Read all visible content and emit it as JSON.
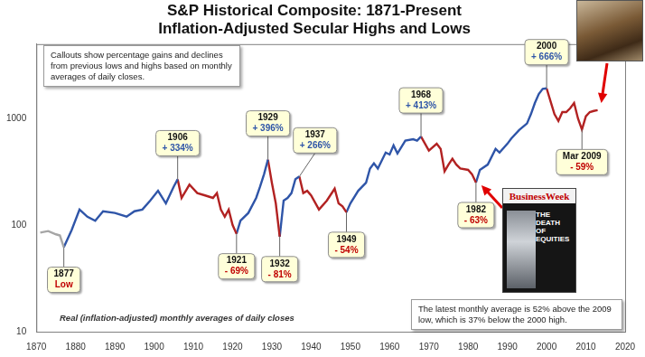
{
  "chart_data": {
    "type": "line",
    "title": [
      "S&P Historical Composite: 1871-Present",
      "Inflation-Adjusted Secular Highs and Lows"
    ],
    "xlim": [
      1870,
      2020
    ],
    "xticks": [
      1870,
      1880,
      1890,
      1900,
      1910,
      1920,
      1930,
      1940,
      1950,
      1960,
      1970,
      1980,
      1990,
      2000,
      2010,
      2020
    ],
    "ylim": [
      10,
      5000
    ],
    "yticks": [
      10,
      100,
      1000
    ],
    "log": "y",
    "grid": false,
    "series": [
      {
        "color": "#a6a6a6",
        "x": [
          1871,
          1873,
          1875,
          1876,
          1877
        ],
        "values": [
          85,
          88,
          82,
          80,
          62
        ]
      },
      {
        "color": "#2f55a8",
        "x": [
          1877,
          1879,
          1881,
          1883,
          1885,
          1887,
          1890,
          1893,
          1895,
          1897,
          1899,
          1901,
          1903,
          1905,
          1906
        ],
        "values": [
          62,
          90,
          140,
          120,
          110,
          135,
          130,
          120,
          135,
          140,
          170,
          210,
          160,
          230,
          269
        ]
      },
      {
        "color": "#b22222",
        "x": [
          1906,
          1907,
          1909,
          1911,
          1913,
          1915,
          1916,
          1917,
          1918,
          1919,
          1920,
          1921
        ],
        "values": [
          269,
          180,
          240,
          200,
          190,
          180,
          200,
          140,
          120,
          140,
          100,
          83
        ]
      },
      {
        "color": "#2f55a8",
        "x": [
          1921,
          1922,
          1924,
          1926,
          1927,
          1928,
          1929
        ],
        "values": [
          83,
          110,
          130,
          180,
          230,
          300,
          412
        ]
      },
      {
        "color": "#b22222",
        "x": [
          1929,
          1930,
          1931,
          1932
        ],
        "values": [
          412,
          250,
          160,
          78
        ]
      },
      {
        "color": "#2f55a8",
        "x": [
          1932,
          1933,
          1934,
          1935,
          1936,
          1937
        ],
        "values": [
          78,
          170,
          180,
          200,
          270,
          286
        ]
      },
      {
        "color": "#b22222",
        "x": [
          1937,
          1938,
          1939,
          1940,
          1942,
          1944,
          1946,
          1947,
          1948,
          1949
        ],
        "values": [
          286,
          200,
          210,
          190,
          140,
          170,
          220,
          160,
          150,
          132
        ]
      },
      {
        "color": "#2f55a8",
        "x": [
          1949,
          1950,
          1952,
          1954,
          1955,
          1956,
          1957,
          1959,
          1960,
          1961,
          1962,
          1964,
          1966,
          1967,
          1968
        ],
        "values": [
          132,
          160,
          210,
          250,
          340,
          380,
          340,
          480,
          460,
          560,
          470,
          620,
          640,
          620,
          678
        ]
      },
      {
        "color": "#b22222",
        "x": [
          1968,
          1970,
          1972,
          1973,
          1974,
          1975,
          1976,
          1977,
          1978,
          1980,
          1981,
          1982
        ],
        "values": [
          678,
          500,
          580,
          520,
          320,
          370,
          420,
          370,
          340,
          330,
          300,
          251
        ]
      },
      {
        "color": "#2f55a8",
        "x": [
          1982,
          1983,
          1985,
          1987,
          1988,
          1990,
          1991,
          1993,
          1995,
          1996,
          1997,
          1998,
          1999,
          2000
        ],
        "values": [
          251,
          330,
          370,
          520,
          480,
          580,
          650,
          780,
          900,
          1100,
          1400,
          1700,
          1900,
          1923
        ]
      },
      {
        "color": "#b22222",
        "x": [
          2000,
          2001,
          2002,
          2003,
          2004,
          2005,
          2006,
          2007,
          2008,
          2009,
          2010,
          2011,
          2012,
          2013
        ],
        "values": [
          1923,
          1450,
          1100,
          950,
          1150,
          1150,
          1250,
          1400,
          1000,
          789,
          1050,
          1150,
          1180,
          1199
        ]
      }
    ],
    "annotations": [
      {
        "x": 1877,
        "y": 62,
        "label": "1877",
        "text": "Low",
        "color": "#c00000"
      },
      {
        "x": 1906,
        "y": 269,
        "label": "1906",
        "text": "+ 334%",
        "color": "#2f55a8"
      },
      {
        "x": 1921,
        "y": 83,
        "label": "1921",
        "text": "- 69%",
        "color": "#c00000"
      },
      {
        "x": 1929,
        "y": 412,
        "label": "1929",
        "text": "+ 396%",
        "color": "#2f55a8"
      },
      {
        "x": 1932,
        "y": 78,
        "label": "1932",
        "text": "- 81%",
        "color": "#c00000"
      },
      {
        "x": 1937,
        "y": 286,
        "label": "1937",
        "text": "+ 266%",
        "color": "#2f55a8"
      },
      {
        "x": 1949,
        "y": 132,
        "label": "1949",
        "text": "- 54%",
        "color": "#c00000"
      },
      {
        "x": 1968,
        "y": 678,
        "label": "1968",
        "text": "+ 413%",
        "color": "#2f55a8"
      },
      {
        "x": 1982,
        "y": 251,
        "label": "1982",
        "text": "- 63%",
        "color": "#c00000"
      },
      {
        "x": 2000,
        "y": 1923,
        "label": "2000",
        "text": "+ 666%",
        "color": "#2f55a8"
      },
      {
        "x": 2009,
        "y": 789,
        "label": "Mar 2009",
        "text": "- 59%",
        "color": "#c00000"
      }
    ],
    "notes": [
      "Callouts show percentage gains and declines from previous lows and highs based on monthly averages of daily closes.",
      "The latest monthly average is 52% above the 2009 low, which is 37% below the 2000 high."
    ],
    "axis_note": "Real (inflation-adjusted) monthly averages of daily closes",
    "cover": {
      "title": "BusinessWeek",
      "headline": "THE DEATH OF EQUITIES"
    }
  }
}
